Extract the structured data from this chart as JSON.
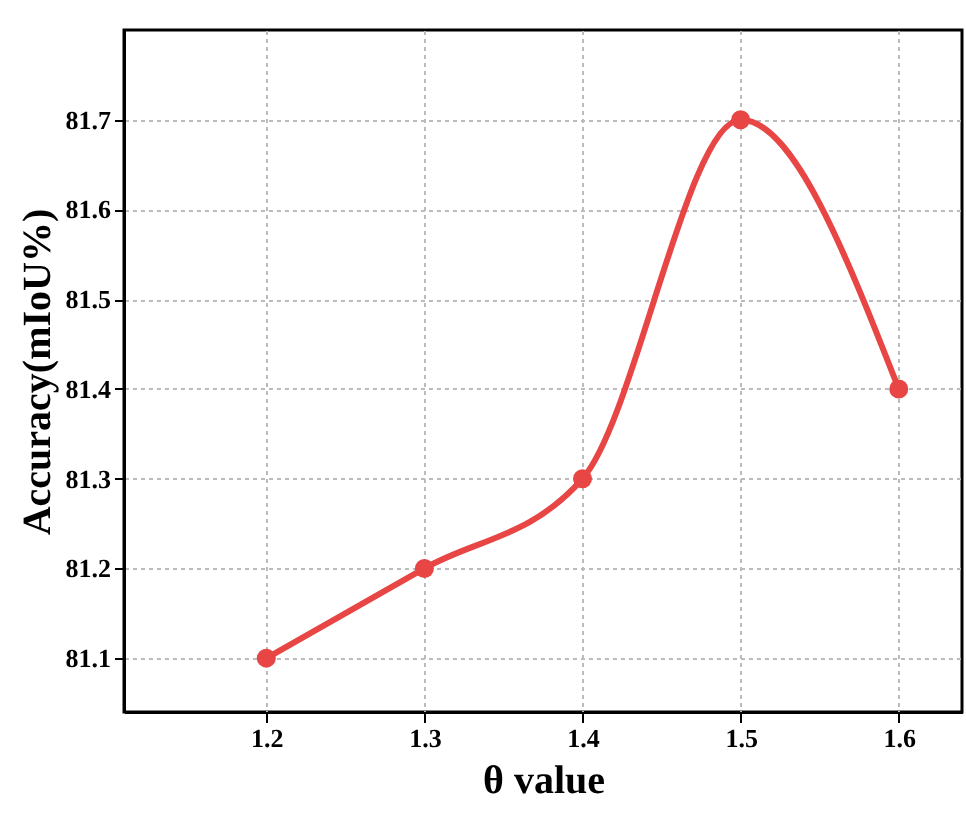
{
  "chart_data": {
    "type": "line",
    "xlabel": "θ value",
    "ylabel": "Accuracy(mIoU%)",
    "x": [
      1.2,
      1.3,
      1.4,
      1.5,
      1.6
    ],
    "series": [
      {
        "color": "#e84545",
        "values": [
          81.1,
          81.2,
          81.3,
          81.7,
          81.4
        ]
      }
    ],
    "xlim": [
      1.11,
      1.64
    ],
    "xticks": [
      1.2,
      1.3,
      1.4,
      1.5,
      1.6
    ],
    "ylim": [
      81.04,
      81.8
    ],
    "yticks": [
      81.1,
      81.2,
      81.3,
      81.4,
      81.5,
      81.6,
      81.7
    ],
    "grid": true,
    "marker": "circle",
    "line_style": "solid"
  }
}
